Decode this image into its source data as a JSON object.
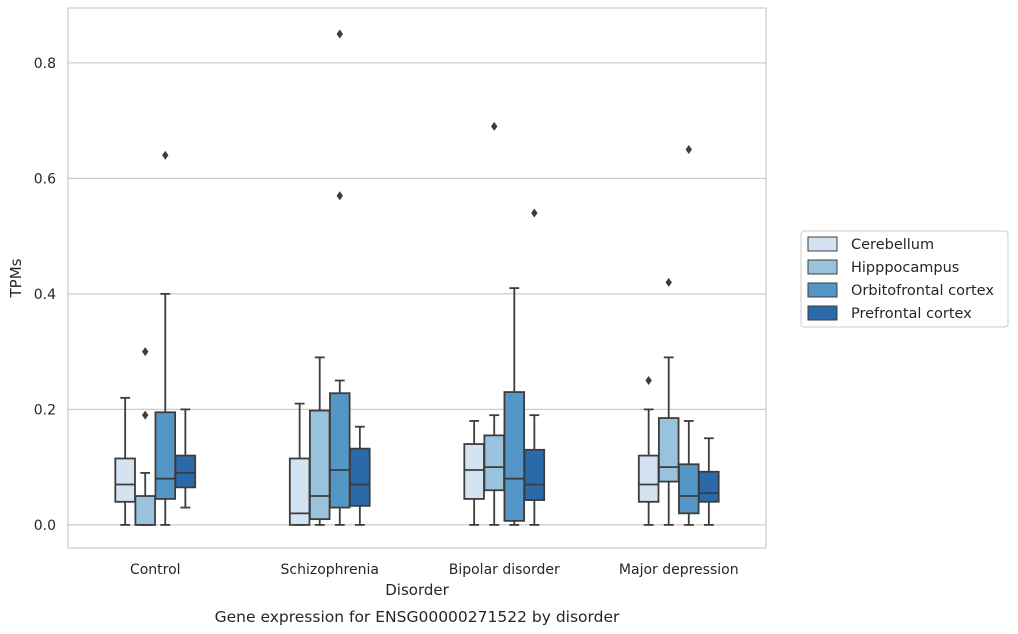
{
  "chart_data": {
    "type": "box",
    "xlabel": "Disorder",
    "ylabel": "TPMs",
    "caption": "Gene expression for ENSG00000271522 by disorder",
    "categories": [
      "Control",
      "Schizophrenia",
      "Bipolar disorder",
      "Major depression"
    ],
    "ylim": [
      -0.04,
      0.895
    ],
    "yticks": [
      0.0,
      0.2,
      0.4,
      0.6,
      0.8
    ],
    "ytick_labels": [
      "0.0",
      "0.2",
      "0.4",
      "0.6",
      "0.8"
    ],
    "grid": "horizontal",
    "legend_position": "right",
    "series": [
      {
        "name": "Cerebellum",
        "color": "#d4e3f1",
        "boxes": [
          {
            "whislo": 0.0,
            "q1": 0.04,
            "med": 0.07,
            "q3": 0.115,
            "whishi": 0.22,
            "fliers": []
          },
          {
            "whislo": 0.0,
            "q1": 0.0,
            "med": 0.02,
            "q3": 0.115,
            "whishi": 0.21,
            "fliers": []
          },
          {
            "whislo": 0.0,
            "q1": 0.045,
            "med": 0.095,
            "q3": 0.14,
            "whishi": 0.18,
            "fliers": []
          },
          {
            "whislo": 0.0,
            "q1": 0.04,
            "med": 0.07,
            "q3": 0.12,
            "whishi": 0.2,
            "fliers": [
              0.25
            ]
          }
        ]
      },
      {
        "name": "Hipppocampus",
        "color": "#99c2dd",
        "boxes": [
          {
            "whislo": 0.0,
            "q1": 0.0,
            "med": 0.0,
            "q3": 0.05,
            "whishi": 0.09,
            "fliers": [
              0.19,
              0.3
            ]
          },
          {
            "whislo": 0.0,
            "q1": 0.01,
            "med": 0.05,
            "q3": 0.198,
            "whishi": 0.29,
            "fliers": []
          },
          {
            "whislo": 0.0,
            "q1": 0.06,
            "med": 0.1,
            "q3": 0.155,
            "whishi": 0.19,
            "fliers": [
              0.69
            ]
          },
          {
            "whislo": 0.0,
            "q1": 0.075,
            "med": 0.1,
            "q3": 0.185,
            "whishi": 0.29,
            "fliers": [
              0.42
            ]
          }
        ]
      },
      {
        "name": "Orbitofrontal cortex",
        "color": "#5497c6",
        "boxes": [
          {
            "whislo": 0.0,
            "q1": 0.045,
            "med": 0.08,
            "q3": 0.195,
            "whishi": 0.4,
            "fliers": [
              0.64
            ]
          },
          {
            "whislo": 0.0,
            "q1": 0.03,
            "med": 0.095,
            "q3": 0.228,
            "whishi": 0.25,
            "fliers": [
              0.57,
              0.85
            ]
          },
          {
            "whislo": 0.0,
            "q1": 0.007,
            "med": 0.08,
            "q3": 0.23,
            "whishi": 0.41,
            "fliers": []
          },
          {
            "whislo": 0.0,
            "q1": 0.02,
            "med": 0.05,
            "q3": 0.105,
            "whishi": 0.18,
            "fliers": [
              0.65
            ]
          }
        ]
      },
      {
        "name": "Prefrontal cortex",
        "color": "#2b6aaa",
        "boxes": [
          {
            "whislo": 0.03,
            "q1": 0.065,
            "med": 0.09,
            "q3": 0.12,
            "whishi": 0.2,
            "fliers": []
          },
          {
            "whislo": 0.0,
            "q1": 0.033,
            "med": 0.07,
            "q3": 0.132,
            "whishi": 0.17,
            "fliers": []
          },
          {
            "whislo": 0.0,
            "q1": 0.043,
            "med": 0.07,
            "q3": 0.13,
            "whishi": 0.19,
            "fliers": [
              0.54
            ]
          },
          {
            "whislo": 0.0,
            "q1": 0.04,
            "med": 0.055,
            "q3": 0.092,
            "whishi": 0.15,
            "fliers": []
          }
        ]
      }
    ]
  }
}
